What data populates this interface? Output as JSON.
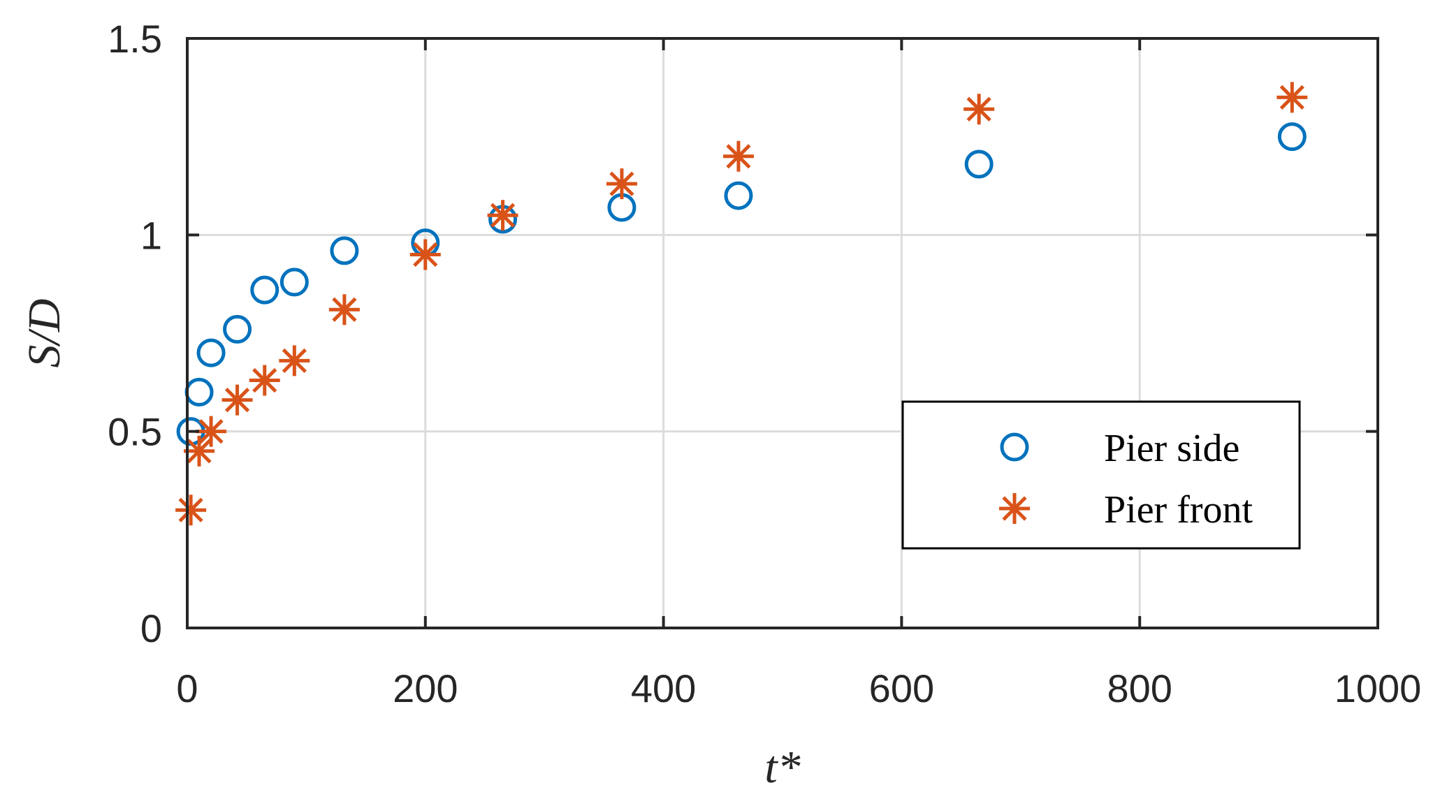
{
  "chart_data": {
    "type": "scatter",
    "xlabel": "t*",
    "ylabel": "S/D",
    "xlim": [
      0,
      1000
    ],
    "ylim": [
      0,
      1.5
    ],
    "xticks": [
      "0",
      "200",
      "400",
      "600",
      "800",
      "1000"
    ],
    "yticks": [
      "0",
      "0.5",
      "1",
      "1.5"
    ],
    "grid": true,
    "legend_position": "lower-right",
    "series": [
      {
        "name": "Pier side",
        "marker": "circle",
        "color": "#0072BD",
        "x": [
          3,
          10,
          20,
          42,
          65,
          90,
          132,
          200,
          265,
          365,
          463,
          665,
          928
        ],
        "y": [
          0.5,
          0.6,
          0.7,
          0.76,
          0.86,
          0.88,
          0.96,
          0.98,
          1.04,
          1.07,
          1.1,
          1.18,
          1.25
        ]
      },
      {
        "name": "Pier front",
        "marker": "asterisk",
        "color": "#D95319",
        "x": [
          3,
          10,
          20,
          42,
          65,
          90,
          132,
          200,
          265,
          365,
          463,
          665,
          928
        ],
        "y": [
          0.3,
          0.45,
          0.5,
          0.58,
          0.63,
          0.68,
          0.81,
          0.95,
          1.05,
          1.13,
          1.2,
          1.32,
          1.35
        ]
      }
    ]
  }
}
